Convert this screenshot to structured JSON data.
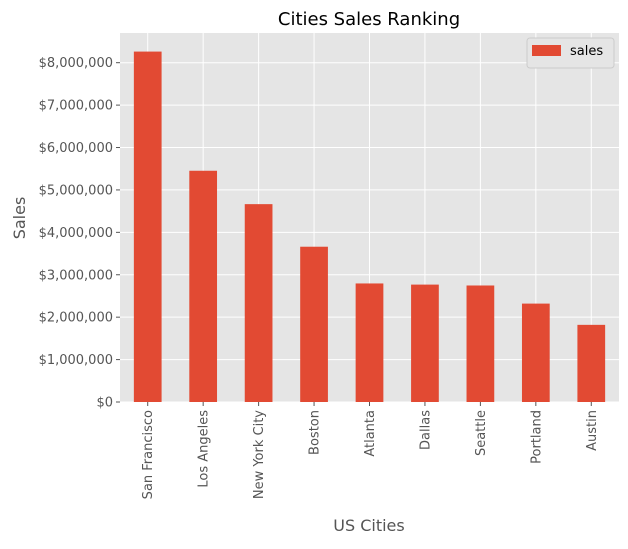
{
  "chart_data": {
    "type": "bar",
    "title": "Cities Sales Ranking",
    "xlabel": "US Cities",
    "ylabel": "Sales",
    "categories": [
      "San Francisco",
      "Los Angeles",
      "New York City",
      "Boston",
      "Atlanta",
      "Dallas",
      "Seattle",
      "Portland",
      "Austin"
    ],
    "series": [
      {
        "name": "sales",
        "values": [
          8262000,
          5452000,
          4665000,
          3661000,
          2795000,
          2768000,
          2747000,
          2320000,
          1819000
        ],
        "color": "#E24A33"
      }
    ],
    "ylim": [
      0,
      8700000
    ],
    "yticks": [
      0,
      1000000,
      2000000,
      3000000,
      4000000,
      5000000,
      6000000,
      7000000,
      8000000
    ],
    "ytick_labels": [
      "$0",
      "$1,000,000",
      "$2,000,000",
      "$3,000,000",
      "$4,000,000",
      "$5,000,000",
      "$6,000,000",
      "$7,000,000",
      "$8,000,000"
    ],
    "grid": true,
    "legend": "top-right",
    "colors": {
      "plot_background": "#E5E5E5",
      "grid": "#FFFFFF",
      "text": "#555555",
      "title": "#000000"
    }
  }
}
